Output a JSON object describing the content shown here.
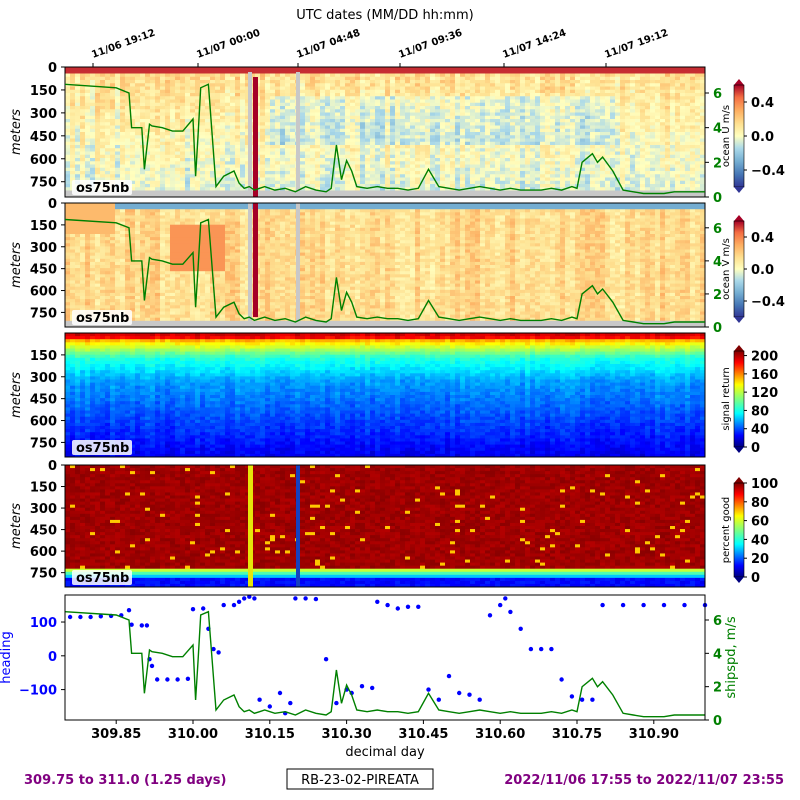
{
  "header": {
    "top_title": "UTC dates (MM/DD hh:mm)"
  },
  "top_ticks": [
    "11/06 19:12",
    "11/07 00:00",
    "11/07 04:48",
    "11/07 09:36",
    "11/07 14:24",
    "11/07 19:12"
  ],
  "footer": {
    "left": "309.75 to 311.0 (1.25 days)",
    "center": "RB-23-02-PIREATA",
    "right": "2022/11/06 17:55 to 2022/11/07 23:55"
  },
  "colors": {
    "purple": "#800080",
    "green": "#008000",
    "blue": "#0000ff"
  },
  "chart_data": [
    {
      "type": "heatmap",
      "name": "ocean_u",
      "ylabel": "meters",
      "yticks": [
        0,
        150,
        300,
        450,
        600,
        750
      ],
      "label": "os75nb",
      "colorbar_label": "ocean U m/s",
      "colorbar_ticks": [
        "0.4",
        "0.0",
        "−0.4"
      ],
      "colorbar_range": [
        -0.6,
        0.6
      ],
      "right_axis_ticks": [
        "6",
        "4",
        "2",
        "0"
      ],
      "colormap": "RdYlBu_r"
    },
    {
      "type": "heatmap",
      "name": "ocean_v",
      "ylabel": "meters",
      "yticks": [
        0,
        150,
        300,
        450,
        600,
        750
      ],
      "label": "os75nb",
      "colorbar_label": "ocean V m/s",
      "colorbar_ticks": [
        "0.4",
        "0.0",
        "−0.4"
      ],
      "colorbar_range": [
        -0.6,
        0.6
      ],
      "right_axis_ticks": [
        "6",
        "4",
        "2",
        "0"
      ],
      "colormap": "RdYlBu_r"
    },
    {
      "type": "heatmap",
      "name": "signal_return",
      "ylabel": "meters",
      "yticks": [
        150,
        300,
        450,
        600,
        750
      ],
      "label": "os75nb",
      "colorbar_label": "signal return",
      "colorbar_ticks": [
        "200",
        "160",
        "120",
        "80",
        "40",
        "0"
      ],
      "colorbar_range": [
        0,
        210
      ],
      "colormap": "jet"
    },
    {
      "type": "heatmap",
      "name": "percent_good",
      "ylabel": "meters",
      "yticks": [
        0,
        150,
        300,
        450,
        600,
        750
      ],
      "label": "os75nb",
      "colorbar_label": "percent good",
      "colorbar_ticks": [
        "100",
        "80",
        "60",
        "40",
        "20",
        "0"
      ],
      "colorbar_range": [
        0,
        100
      ],
      "colormap": "jet"
    },
    {
      "type": "scatter",
      "name": "heading_shipspd",
      "xlabel": "decimal day",
      "ylabel": "heading",
      "ylabel_right": "shipspd, m/s",
      "xlim": [
        309.75,
        311.0
      ],
      "xticks": [
        "309.85",
        "310.00",
        "310.15",
        "310.30",
        "310.45",
        "310.60",
        "310.75",
        "310.90"
      ],
      "yticks": [
        "100",
        "0",
        "−100"
      ],
      "ylim": [
        -190,
        180
      ],
      "y2ticks": [
        "6",
        "4",
        "2",
        "0"
      ],
      "y2lim": [
        0,
        7.5
      ],
      "series": [
        {
          "name": "heading",
          "color": "#0000ff",
          "points": [
            [
              309.76,
              115
            ],
            [
              309.78,
              115
            ],
            [
              309.8,
              115
            ],
            [
              309.82,
              117
            ],
            [
              309.84,
              118
            ],
            [
              309.86,
              120
            ],
            [
              309.875,
              135
            ],
            [
              309.88,
              92
            ],
            [
              309.9,
              90
            ],
            [
              309.91,
              90
            ],
            [
              309.915,
              -10
            ],
            [
              309.92,
              -30
            ],
            [
              309.93,
              -70
            ],
            [
              309.95,
              -70
            ],
            [
              309.97,
              -70
            ],
            [
              309.99,
              -68
            ],
            [
              310.0,
              138
            ],
            [
              310.02,
              140
            ],
            [
              310.03,
              80
            ],
            [
              310.04,
              20
            ],
            [
              310.05,
              10
            ],
            [
              310.06,
              150
            ],
            [
              310.08,
              150
            ],
            [
              310.09,
              160
            ],
            [
              310.1,
              170
            ],
            [
              310.11,
              175
            ],
            [
              310.12,
              170
            ],
            [
              310.13,
              -130
            ],
            [
              310.15,
              -150
            ],
            [
              310.17,
              -110
            ],
            [
              310.18,
              -170
            ],
            [
              310.19,
              -140
            ],
            [
              310.2,
              170
            ],
            [
              310.22,
              170
            ],
            [
              310.24,
              168
            ],
            [
              310.26,
              -10
            ],
            [
              310.28,
              -140
            ],
            [
              310.3,
              -100
            ],
            [
              310.31,
              -110
            ],
            [
              310.33,
              -90
            ],
            [
              310.35,
              -95
            ],
            [
              310.36,
              160
            ],
            [
              310.38,
              150
            ],
            [
              310.4,
              140
            ],
            [
              310.42,
              145
            ],
            [
              310.44,
              145
            ],
            [
              310.46,
              -100
            ],
            [
              310.48,
              -130
            ],
            [
              310.5,
              -60
            ],
            [
              310.52,
              -110
            ],
            [
              310.54,
              -115
            ],
            [
              310.56,
              -130
            ],
            [
              310.58,
              120
            ],
            [
              310.6,
              150
            ],
            [
              310.61,
              170
            ],
            [
              310.62,
              130
            ],
            [
              310.64,
              80
            ],
            [
              310.66,
              20
            ],
            [
              310.68,
              20
            ],
            [
              310.7,
              20
            ],
            [
              310.72,
              -70
            ],
            [
              310.74,
              -120
            ],
            [
              310.76,
              -130
            ],
            [
              310.78,
              -130
            ],
            [
              310.8,
              150
            ],
            [
              310.84,
              150
            ],
            [
              310.88,
              150
            ],
            [
              310.92,
              150
            ],
            [
              310.96,
              150
            ],
            [
              311.0,
              150
            ]
          ]
        },
        {
          "name": "shipspd",
          "color": "#008000",
          "points": [
            [
              309.75,
              6.5
            ],
            [
              309.85,
              6.3
            ],
            [
              309.875,
              6.0
            ],
            [
              309.88,
              4.0
            ],
            [
              309.9,
              4.0
            ],
            [
              309.905,
              1.6
            ],
            [
              309.915,
              4.2
            ],
            [
              309.92,
              4.1
            ],
            [
              309.94,
              4.0
            ],
            [
              309.96,
              3.8
            ],
            [
              309.98,
              3.8
            ],
            [
              310.0,
              4.5
            ],
            [
              310.005,
              1.2
            ],
            [
              310.01,
              3.6
            ],
            [
              310.015,
              6.3
            ],
            [
              310.03,
              6.5
            ],
            [
              310.045,
              0.6
            ],
            [
              310.06,
              1.2
            ],
            [
              310.08,
              1.5
            ],
            [
              310.09,
              0.8
            ],
            [
              310.1,
              0.5
            ],
            [
              310.11,
              0.6
            ],
            [
              310.12,
              0.4
            ],
            [
              310.13,
              0.5
            ],
            [
              310.14,
              0.6
            ],
            [
              310.16,
              0.4
            ],
            [
              310.18,
              0.5
            ],
            [
              310.2,
              0.3
            ],
            [
              310.22,
              0.6
            ],
            [
              310.24,
              0.4
            ],
            [
              310.26,
              0.3
            ],
            [
              310.27,
              0.5
            ],
            [
              310.28,
              3.0
            ],
            [
              310.29,
              1.0
            ],
            [
              310.3,
              2.1
            ],
            [
              310.31,
              1.5
            ],
            [
              310.32,
              0.6
            ],
            [
              310.34,
              0.5
            ],
            [
              310.36,
              0.6
            ],
            [
              310.38,
              0.5
            ],
            [
              310.4,
              0.5
            ],
            [
              310.42,
              0.4
            ],
            [
              310.44,
              0.5
            ],
            [
              310.46,
              1.6
            ],
            [
              310.48,
              0.6
            ],
            [
              310.5,
              0.5
            ],
            [
              310.52,
              0.4
            ],
            [
              310.54,
              0.5
            ],
            [
              310.56,
              0.6
            ],
            [
              310.58,
              0.5
            ],
            [
              310.6,
              0.4
            ],
            [
              310.62,
              0.5
            ],
            [
              310.64,
              0.4
            ],
            [
              310.66,
              0.4
            ],
            [
              310.68,
              0.4
            ],
            [
              310.7,
              0.5
            ],
            [
              310.72,
              0.4
            ],
            [
              310.74,
              0.6
            ],
            [
              310.75,
              0.5
            ],
            [
              310.76,
              2.0
            ],
            [
              310.78,
              2.5
            ],
            [
              310.79,
              2.0
            ],
            [
              310.8,
              2.3
            ],
            [
              310.82,
              1.5
            ],
            [
              310.84,
              0.4
            ],
            [
              310.86,
              0.3
            ],
            [
              310.88,
              0.2
            ],
            [
              310.9,
              0.2
            ],
            [
              310.92,
              0.2
            ],
            [
              310.94,
              0.3
            ],
            [
              310.96,
              0.3
            ],
            [
              310.98,
              0.3
            ],
            [
              311.0,
              0.3
            ]
          ]
        }
      ]
    }
  ]
}
